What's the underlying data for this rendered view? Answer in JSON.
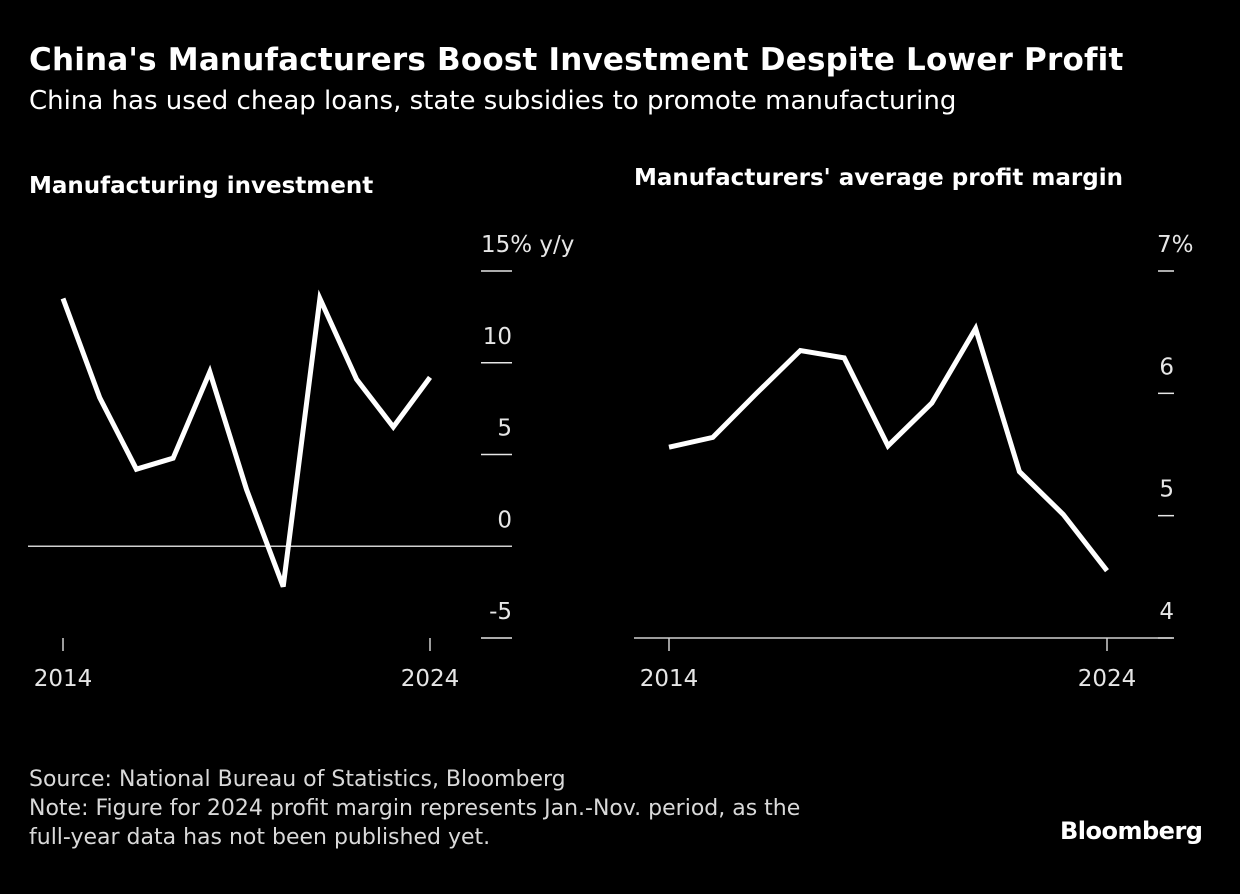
{
  "header": {
    "title": "China's Manufacturers Boost Investment Despite Lower Profit",
    "subtitle": "China has used cheap loans, state subsidies to promote manufacturing"
  },
  "chart_data": [
    {
      "type": "line",
      "title": "Manufacturing investment",
      "ylabel": "% y/y",
      "unit_label": "15% y/y",
      "x": [
        2014,
        2015,
        2016,
        2017,
        2018,
        2019,
        2020,
        2021,
        2022,
        2023,
        2024
      ],
      "series": [
        {
          "name": "Manufacturing investment",
          "values": [
            13.5,
            8.1,
            4.2,
            4.8,
            9.5,
            3.1,
            -2.2,
            13.5,
            9.1,
            6.5,
            9.2
          ]
        }
      ],
      "ylim": [
        -5,
        15
      ],
      "yticks": [
        -5,
        0,
        5,
        10,
        15
      ],
      "ytick_labels": [
        "-5",
        "0",
        "5",
        "10",
        "15% y/y"
      ],
      "xticks": [
        2014,
        2024
      ],
      "xtick_labels": [
        "2014",
        "2024"
      ],
      "zero_line": true,
      "color": "#ffffff"
    },
    {
      "type": "line",
      "title": "Manufacturers' average profit margin",
      "ylabel": "%",
      "x": [
        2014,
        2015,
        2016,
        2017,
        2018,
        2019,
        2020,
        2021,
        2022,
        2023,
        2024
      ],
      "series": [
        {
          "name": "Average profit margin",
          "values": [
            5.56,
            5.64,
            6.0,
            6.35,
            6.29,
            5.57,
            5.92,
            6.53,
            5.36,
            5.01,
            4.55
          ]
        }
      ],
      "ylim": [
        4,
        7
      ],
      "yticks": [
        4,
        5,
        6,
        7
      ],
      "ytick_labels": [
        "4",
        "5",
        "6",
        "7%"
      ],
      "xticks": [
        2014,
        2024
      ],
      "xtick_labels": [
        "2014",
        "2024"
      ],
      "color": "#ffffff"
    }
  ],
  "footer": {
    "source": "Source: National Bureau of Statistics, Bloomberg",
    "note_line1": "Note: Figure for 2024 profit margin represents Jan.-Nov. period, as the",
    "note_line2": "full-year data has not been published yet.",
    "brand": "Bloomberg"
  }
}
